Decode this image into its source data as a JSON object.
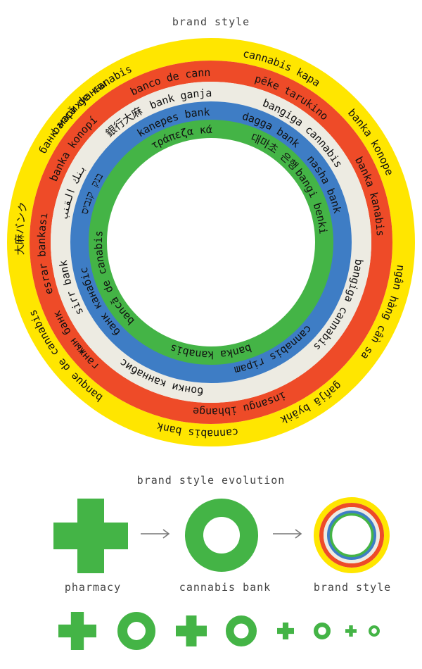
{
  "header": {
    "title": "brand style"
  },
  "colors": {
    "yellow": "#FFE600",
    "red": "#EE4B28",
    "cream": "#EDEBE2",
    "blue": "#3E7DC5",
    "green": "#44B446",
    "arrow": "#777777"
  },
  "rings": [
    {
      "name": "outer-yellow",
      "color": "yellow",
      "labels": [
        {
          "text": "bancă de canabis",
          "angle": -40
        },
        {
          "text": "cannabis kapa",
          "angle": 22
        },
        {
          "text": "banka konope",
          "angle": 58
        },
        {
          "text": "ngân hàng cần sa",
          "angle": 112
        },
        {
          "text": "gañjā byāṅk",
          "angle": 148
        },
        {
          "text": "cannabis bank",
          "angle": 184
        },
        {
          "text": "banque de cannabis",
          "angle": 232
        },
        {
          "text": "大麻バンク",
          "angle": 274
        },
        {
          "text": "банк марихуанны",
          "angle": 312
        }
      ]
    },
    {
      "name": "red",
      "color": "red",
      "labels": [
        {
          "text": "banco de cannabis",
          "angle": -10
        },
        {
          "text": "pēke tarukino",
          "angle": 29
        },
        {
          "text": "banka kanabis",
          "angle": 74
        },
        {
          "text": "insangu ibhange",
          "angle": 170
        },
        {
          "text": "ганжын банк",
          "angle": 234
        },
        {
          "text": "esrar bankası",
          "angle": 266
        },
        {
          "text": "banka konopí",
          "angle": 304
        }
      ]
    },
    {
      "name": "cream",
      "color": "cream",
      "labels": [
        {
          "text": "bank ganja",
          "angle": -12
        },
        {
          "text": "bangiga cannabis",
          "angle": 40
        },
        {
          "text": "bangiga cannabis",
          "angle": 116
        },
        {
          "text": "бонки каннабис",
          "angle": 200
        },
        {
          "text": "sirr bank",
          "angle": 252
        },
        {
          "text": "بنك القنب",
          "angle": 290
        },
        {
          "text": "銀行大麻",
          "angle": 324
        }
      ]
    },
    {
      "name": "blue",
      "color": "blue",
      "labels": [
        {
          "text": "kanepes banka",
          "angle": -16
        },
        {
          "text": "dagga bank",
          "angle": 28
        },
        {
          "text": "nasha bank",
          "angle": 63
        },
        {
          "text": "cannabis ripam",
          "angle": 150
        },
        {
          "text": "банк канабіс",
          "angle": 242
        },
        {
          "text": "בנק קנביס",
          "angle": 292
        }
      ]
    },
    {
      "name": "green",
      "color": "green",
      "labels": [
        {
          "text": "τράπεζα κάνναβης",
          "angle": -6
        },
        {
          "text": "대마초 은행",
          "angle": 35
        },
        {
          "text": "bangi benki",
          "angle": 68
        },
        {
          "text": "banka kanabis",
          "angle": 180
        },
        {
          "text": "bancă de canabis",
          "angle": 250
        }
      ]
    }
  ],
  "evolution": {
    "title": "brand style evolution",
    "steps": [
      {
        "label": "pharmacy",
        "icon": "cross-icon"
      },
      {
        "label": "cannabis bank",
        "icon": "ring-icon"
      },
      {
        "label": "brand style",
        "icon": "rainbow-ring-icon"
      }
    ]
  },
  "mini_icons": [
    "cross",
    "ring",
    "cross",
    "ring",
    "cross",
    "ring",
    "cross",
    "ring"
  ]
}
